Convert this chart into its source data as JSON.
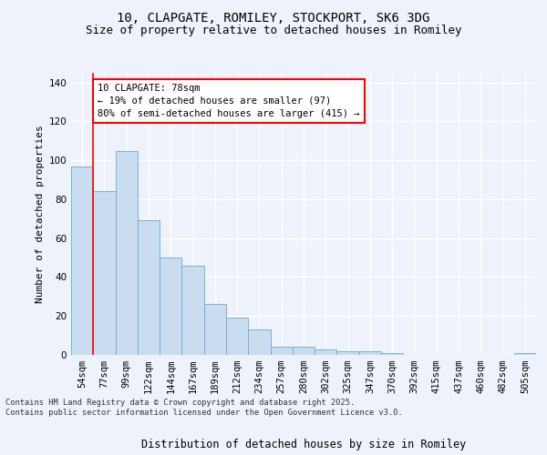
{
  "title1": "10, CLAPGATE, ROMILEY, STOCKPORT, SK6 3DG",
  "title2": "Size of property relative to detached houses in Romiley",
  "xlabel": "Distribution of detached houses by size in Romiley",
  "ylabel": "Number of detached properties",
  "categories": [
    "54sqm",
    "77sqm",
    "99sqm",
    "122sqm",
    "144sqm",
    "167sqm",
    "189sqm",
    "212sqm",
    "234sqm",
    "257sqm",
    "280sqm",
    "302sqm",
    "325sqm",
    "347sqm",
    "370sqm",
    "392sqm",
    "415sqm",
    "437sqm",
    "460sqm",
    "482sqm",
    "505sqm"
  ],
  "values": [
    97,
    84,
    105,
    69,
    50,
    46,
    26,
    19,
    13,
    4,
    4,
    3,
    2,
    2,
    1,
    0,
    0,
    0,
    0,
    0,
    1
  ],
  "bar_color": "#c9dcf0",
  "bar_edge_color": "#6aaad4",
  "red_line_index": 1,
  "annotation_text": "10 CLAPGATE: 78sqm\n← 19% of detached houses are smaller (97)\n80% of semi-detached houses are larger (415) →",
  "annotation_box_color": "white",
  "annotation_box_edge_color": "red",
  "ylim": [
    0,
    145
  ],
  "yticks": [
    0,
    20,
    40,
    60,
    80,
    100,
    120,
    140
  ],
  "background_color": "#eef2fb",
  "grid_color": "white",
  "footer_text": "Contains HM Land Registry data © Crown copyright and database right 2025.\nContains public sector information licensed under the Open Government Licence v3.0.",
  "title1_fontsize": 10,
  "title2_fontsize": 9,
  "xlabel_fontsize": 8.5,
  "ylabel_fontsize": 8,
  "tick_fontsize": 7.5,
  "annotation_fontsize": 7.5
}
